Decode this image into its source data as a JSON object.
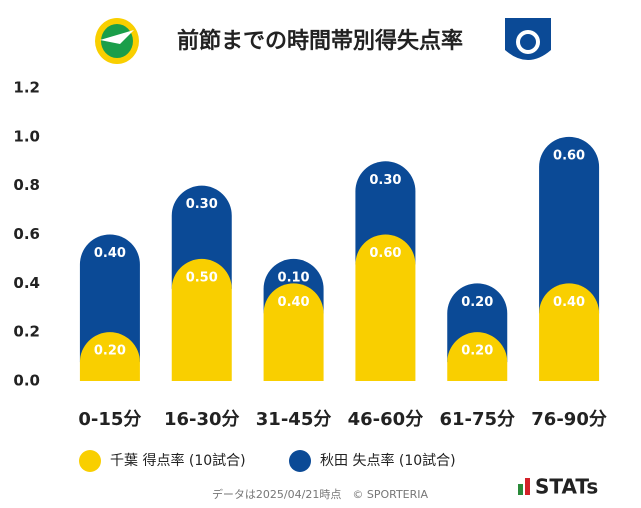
{
  "chart_data": {
    "type": "bar",
    "stacked": true,
    "title": "前節までの時間帯別得失点率",
    "categories": [
      "0-15分",
      "16-30分",
      "31-45分",
      "46-60分",
      "61-75分",
      "76-90分"
    ],
    "series": [
      {
        "name": "千葉 得点率 (10試合)",
        "color": "#f9cf00",
        "values": [
          0.2,
          0.5,
          0.4,
          0.6,
          0.2,
          0.4
        ],
        "value_labels": [
          "0.20",
          "0.50",
          "0.40",
          "0.60",
          "0.20",
          "0.40"
        ]
      },
      {
        "name": "秋田 失点率 (10試合)",
        "color": "#0b4a96",
        "values": [
          0.4,
          0.3,
          0.1,
          0.3,
          0.2,
          0.6
        ],
        "value_labels": [
          "0.40",
          "0.30",
          "0.10",
          "0.30",
          "0.20",
          "0.60"
        ]
      }
    ],
    "ylim": [
      0,
      1.2
    ],
    "yticks": [
      {
        "value": 0,
        "label": "0.0"
      },
      0.2,
      0.4,
      0.6,
      0.8,
      {
        "value": 1,
        "label": "1.0"
      },
      1.2
    ],
    "grid": false,
    "footnote": "データは2025/04/21時点　© SPORTERIA",
    "brand": "STATs"
  }
}
